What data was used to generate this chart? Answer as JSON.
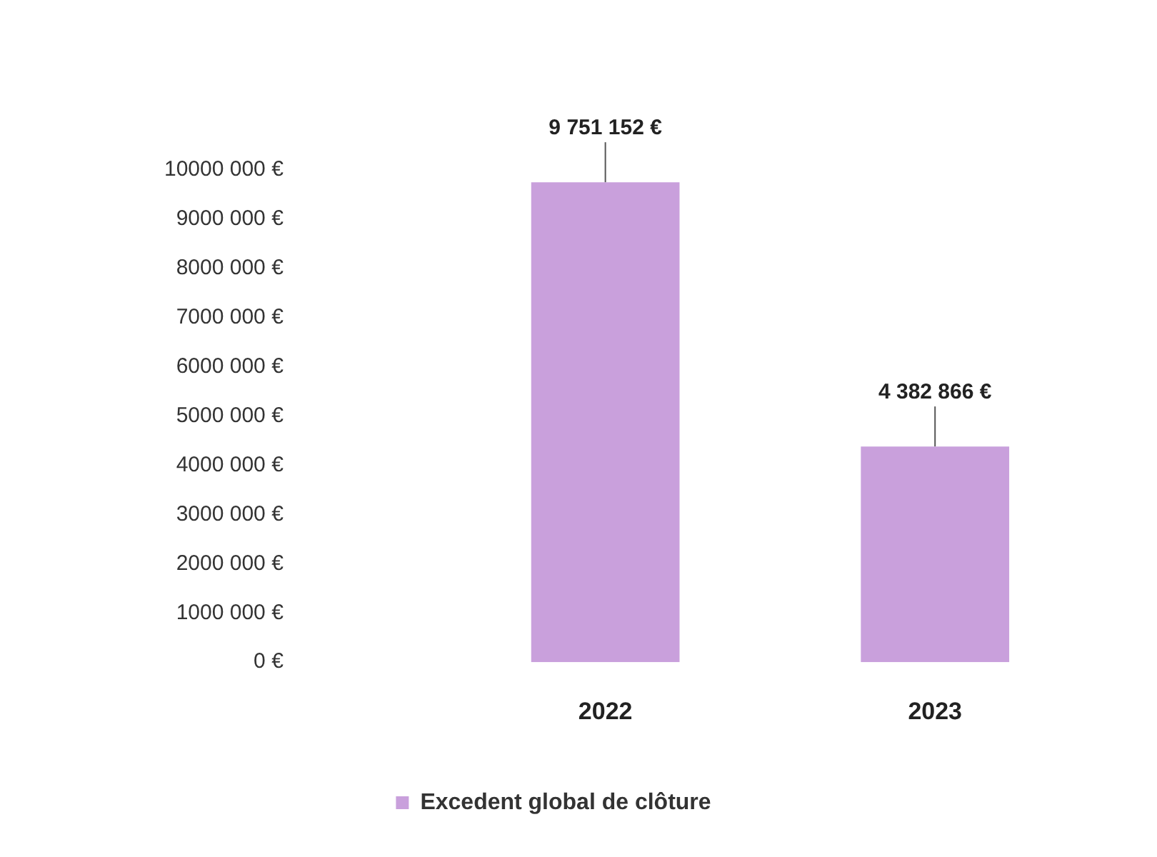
{
  "chart_data": {
    "type": "bar",
    "categories": [
      "2022",
      "2023"
    ],
    "series": [
      {
        "name": "Excedent global de clôture",
        "color": "#c9a0dc",
        "values": [
          9751152,
          4382866
        ],
        "value_labels": [
          "9 751 152 €",
          "4 382 866 €"
        ]
      }
    ],
    "ylim": [
      0,
      10000000
    ],
    "yticks": [
      {
        "value": 0,
        "label": "0 €"
      },
      {
        "value": 1000000,
        "label": "1000 000 €"
      },
      {
        "value": 2000000,
        "label": "2000 000 €"
      },
      {
        "value": 3000000,
        "label": "3000 000 €"
      },
      {
        "value": 4000000,
        "label": "4000 000 €"
      },
      {
        "value": 5000000,
        "label": "5000 000 €"
      },
      {
        "value": 6000000,
        "label": "6000 000 €"
      },
      {
        "value": 7000000,
        "label": "7000 000 €"
      },
      {
        "value": 8000000,
        "label": "8000 000 €"
      },
      {
        "value": 9000000,
        "label": "9000 000 €"
      },
      {
        "value": 10000000,
        "label": "10000 000 €"
      }
    ],
    "grid": false,
    "legend": "bottom"
  }
}
